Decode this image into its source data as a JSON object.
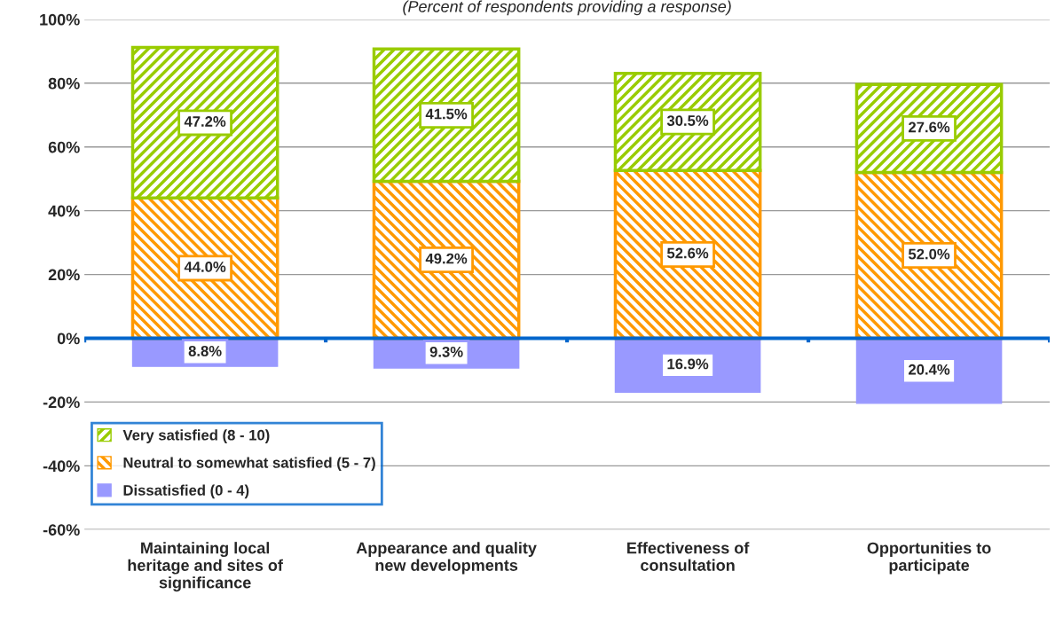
{
  "chart_data": {
    "type": "bar",
    "subtitle": "(Percent of respondents providing a response)",
    "categories": [
      "Maintaining local\nheritage and sites of\nsignificance",
      "Appearance and quality\nnew developments",
      "Effectiveness of\nconsultation",
      "Opportunities to\nparticipate"
    ],
    "stacked": true,
    "series": [
      {
        "name": "Dissatisfied (0 - 4)",
        "color": "#9999ff",
        "values": [
          8.8,
          9.3,
          16.9,
          20.4
        ],
        "base": [
          -8.8,
          -9.3,
          -16.9,
          -20.4
        ],
        "value_labels": [
          "8.8%",
          "9.3%",
          "16.9%",
          "20.4%"
        ]
      },
      {
        "name": "Neutral to somewhat satisfied (5 - 7)",
        "color": "#ff9900",
        "values": [
          44.0,
          49.2,
          52.6,
          52.0
        ],
        "value_labels": [
          "44.0%",
          "49.2%",
          "52.6%",
          "52.0%"
        ]
      },
      {
        "name": "Very satisfied (8 - 10)",
        "color": "#99cc00",
        "values": [
          47.2,
          41.5,
          30.5,
          27.6
        ],
        "value_labels": [
          "47.2%",
          "41.5%",
          "30.5%",
          "27.6%"
        ]
      }
    ],
    "ylim": [
      -60,
      100
    ],
    "yticks": [
      {
        "value": -60,
        "label": "-60%"
      },
      {
        "value": -40,
        "label": "-40%"
      },
      {
        "value": -20,
        "label": "-20%"
      },
      {
        "value": 0,
        "label": "0%"
      },
      {
        "value": 20,
        "label": "20%"
      },
      {
        "value": 40,
        "label": "40%"
      },
      {
        "value": 60,
        "label": "60%"
      },
      {
        "value": 80,
        "label": "80%"
      },
      {
        "value": 100,
        "label": "100%"
      }
    ],
    "ref_lines": [
      {
        "axis": "y",
        "value": 0,
        "color": "#0066cc"
      }
    ],
    "grid": "y",
    "legend": "bottom left"
  }
}
